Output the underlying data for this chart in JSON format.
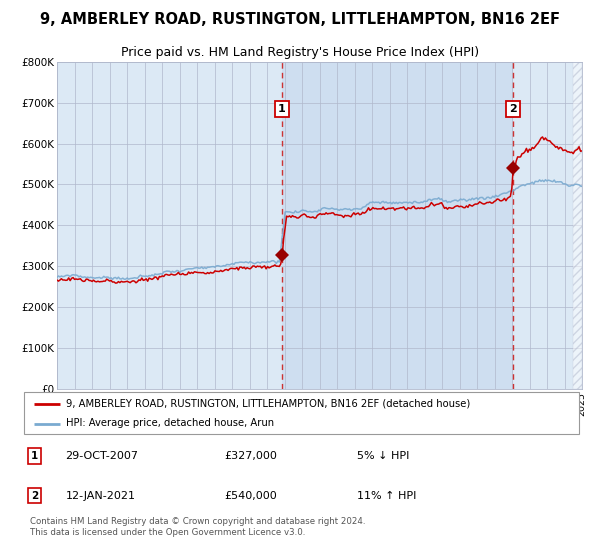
{
  "title": "9, AMBERLEY ROAD, RUSTINGTON, LITTLEHAMPTON, BN16 2EF",
  "subtitle": "Price paid vs. HM Land Registry's House Price Index (HPI)",
  "title_fontsize": 10.5,
  "subtitle_fontsize": 9,
  "bg_color": "#dce9f5",
  "grid_color": "#b0b8cc",
  "x_start_year": 1995,
  "x_end_year": 2025,
  "y_min": 0,
  "y_max": 800000,
  "y_ticks": [
    0,
    100000,
    200000,
    300000,
    400000,
    500000,
    600000,
    700000,
    800000
  ],
  "y_tick_labels": [
    "£0",
    "£100K",
    "£200K",
    "£300K",
    "£400K",
    "£500K",
    "£600K",
    "£700K",
    "£800K"
  ],
  "marker1_year": 2007.83,
  "marker1_value": 327000,
  "marker1_label": "1",
  "marker2_year": 2021.04,
  "marker2_value": 540000,
  "marker2_label": "2",
  "legend_line1": "9, AMBERLEY ROAD, RUSTINGTON, LITTLEHAMPTON, BN16 2EF (detached house)",
  "legend_line2": "HPI: Average price, detached house, Arun",
  "annotation1_num": "1",
  "annotation1_date": "29-OCT-2007",
  "annotation1_price": "£327,000",
  "annotation1_change": "5% ↓ HPI",
  "annotation2_num": "2",
  "annotation2_date": "12-JAN-2021",
  "annotation2_price": "£540,000",
  "annotation2_change": "11% ↑ HPI",
  "footer": "Contains HM Land Registry data © Crown copyright and database right 2024.\nThis data is licensed under the Open Government Licence v3.0.",
  "line_red_color": "#cc0000",
  "line_blue_color": "#7aaad0",
  "marker_color": "#990000",
  "span_color": "#c5d8ee"
}
